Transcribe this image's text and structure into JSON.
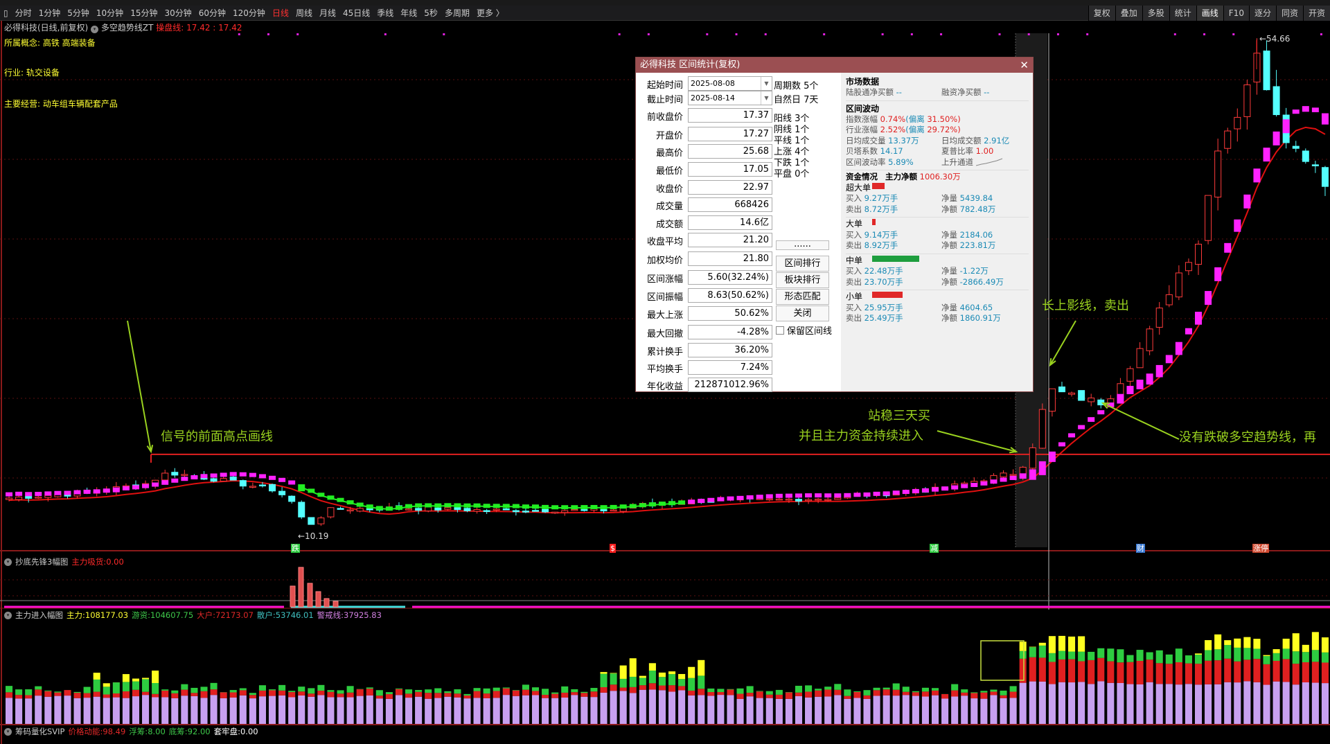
{
  "toolbar": {
    "periods": [
      "分时",
      "1分钟",
      "5分钟",
      "10分钟",
      "15分钟",
      "30分钟",
      "60分钟",
      "120分钟",
      "日线",
      "周线",
      "月线",
      "45日线",
      "季线",
      "年线",
      "5秒",
      "多周期",
      "更多 〉"
    ],
    "active": "日线",
    "right_buttons": [
      "复权",
      "叠加",
      "多股",
      "统计",
      "画线",
      "F10",
      "逐分",
      "同资",
      "开资"
    ],
    "right_active": "画线"
  },
  "info": {
    "stock": "必得科技(日线,前复权)",
    "indicator": "多空趋势线ZT",
    "pan_label": "操盘线:",
    "pan_value": "17.42 : 17.42",
    "concept": "所属概念: 高铁 高端装备",
    "industry": "行业: 轨交设备",
    "business": "主要经营: 动车组车辆配套产品"
  },
  "chart": {
    "high_label": "←54.66",
    "low_label": "←10.19",
    "markers": [
      {
        "t": "跌",
        "c": "#2ecc40"
      },
      {
        "t": "$",
        "c": "#ff2020"
      },
      {
        "t": "减",
        "c": "#2ecc40"
      },
      {
        "t": "财",
        "c": "#3a7bd5"
      },
      {
        "t": "涨停",
        "c": "#d04a30"
      }
    ],
    "price_keypoints": [
      [
        0,
        13.5
      ],
      [
        0.06,
        14
      ],
      [
        0.104,
        14.8
      ],
      [
        0.121,
        15.8
      ],
      [
        0.156,
        15.2
      ],
      [
        0.203,
        14.2
      ],
      [
        0.219,
        12.8
      ],
      [
        0.225,
        10.8
      ],
      [
        0.245,
        12.5
      ],
      [
        0.292,
        12.6
      ],
      [
        0.365,
        12.4
      ],
      [
        0.458,
        12.4
      ],
      [
        0.469,
        12.8
      ],
      [
        0.536,
        13.3
      ],
      [
        0.573,
        13.3
      ],
      [
        0.625,
        13.5
      ],
      [
        0.708,
        14.3
      ],
      [
        0.74,
        15.2
      ],
      [
        0.766,
        15.8
      ],
      [
        0.776,
        17.4
      ],
      [
        0.784,
        21
      ],
      [
        0.792,
        23.2
      ],
      [
        0.813,
        22.5
      ],
      [
        0.833,
        22
      ],
      [
        0.844,
        24
      ],
      [
        0.865,
        28
      ],
      [
        0.885,
        33
      ],
      [
        0.906,
        37
      ],
      [
        0.917,
        45
      ],
      [
        0.938,
        49
      ],
      [
        0.945,
        54
      ],
      [
        0.958,
        50
      ],
      [
        0.974,
        45
      ],
      [
        0.99,
        44
      ],
      [
        1,
        42
      ]
    ],
    "price_range": [
      10.19,
      54.66
    ],
    "resistance": 17.42,
    "colors": {
      "up": "#ff3b3b",
      "down": "#54ffff",
      "trend_up": "#ff22ff",
      "trend_down": "#22ee22",
      "ma": "#e01010"
    }
  },
  "annotations": {
    "a1": "信号的前面高点画线",
    "a2": "站稳三天买",
    "a3": "并且主力资金持续进入",
    "a4": "长上影线，卖出",
    "a5": "没有跌破多空趋势线，再"
  },
  "dialog": {
    "title": "必得科技 区间统计(复权)",
    "close": "✕",
    "fields": [
      {
        "label": "起始时间",
        "value": "2025-08-08"
      },
      {
        "label": "截止时间",
        "value": "2025-08-14"
      },
      {
        "label": "前收盘价",
        "value": "17.37"
      },
      {
        "label": "开盘价",
        "value": "17.27"
      },
      {
        "label": "最高价",
        "value": "25.68"
      },
      {
        "label": "最低价",
        "value": "17.05"
      },
      {
        "label": "收盘价",
        "value": "22.97"
      },
      {
        "label": "成交量",
        "value": "668426"
      },
      {
        "label": "成交额",
        "value": "14.6亿"
      },
      {
        "label": "收盘平均",
        "value": "21.20"
      },
      {
        "label": "加权均价",
        "value": "21.80"
      },
      {
        "label": "区间涨幅",
        "value": "5.60(32.24%)"
      },
      {
        "label": "区间振幅",
        "value": "8.63(50.62%)"
      },
      {
        "label": "最大上涨",
        "value": "50.62%"
      },
      {
        "label": "最大回撤",
        "value": "-4.28%"
      },
      {
        "label": "累计换手",
        "value": "36.20%"
      },
      {
        "label": "平均换手",
        "value": "7.24%"
      },
      {
        "label": "年化收益",
        "value": "212871012.96%"
      }
    ],
    "stats": [
      "周期数 5个",
      "自然日 7天",
      "阳线 3个",
      "阴线 1个",
      "平线 1个",
      "上涨 4个",
      "下跌 1个",
      "平盘 0个"
    ],
    "buttons": [
      "......",
      "区间排行",
      "板块排行",
      "形态匹配",
      "关闭"
    ],
    "keep_line": "保留区间线",
    "keep_checked": false,
    "market": {
      "title": "市场数据",
      "lugu": "陆股通净买额",
      "lugu_v": "--",
      "rongzi": "融资净买额",
      "rongzi_v": "--"
    },
    "vol": {
      "title": "区间波动",
      "idx": "指数涨幅",
      "idx_v": "0.74%",
      "idx_dev": "(偏离",
      "idx_dev_v": "31.50%)",
      "ind": "行业涨幅",
      "ind_v": "2.52%",
      "ind_dev": "(偏离",
      "ind_dev_v": "29.72%)",
      "avgvol": "日均成交量",
      "avgvol_v": "13.37万",
      "avgamt": "日均成交额",
      "avgamt_v": "2.91亿",
      "beta": "贝塔系数",
      "beta_v": "14.17",
      "sharpe": "夏普比率",
      "sharpe_v": "1.00",
      "volat": "区间波动率",
      "volat_v": "5.89%",
      "channel": "上升通道"
    },
    "funds": {
      "title": "资金情况",
      "main": "主力净额",
      "main_v": "1006.30万",
      "groups": [
        {
          "name": "超大单",
          "color": "#e02828",
          "bar": 0.27,
          "buy": "9.27万手",
          "sell": "8.72万手",
          "nq": "5439.84",
          "na": "782.48万"
        },
        {
          "name": "大单",
          "color": "#e02828",
          "bar": 0.07,
          "buy": "9.14万手",
          "sell": "8.92万手",
          "nq": "2184.06",
          "na": "223.81万"
        },
        {
          "name": "中单",
          "color": "#1e9e3e",
          "bar": 1.0,
          "buy": "22.48万手",
          "sell": "23.70万手",
          "nq": "-1.22万",
          "na": "-2866.49万"
        },
        {
          "name": "小单",
          "color": "#e02828",
          "bar": 0.64,
          "buy": "25.95万手",
          "sell": "25.49万手",
          "nq": "4604.65",
          "na": "1860.91万"
        }
      ],
      "buy": "买入",
      "sell": "卖出",
      "nq": "净量",
      "na": "净额"
    }
  },
  "panel1": {
    "name": "抄底先锋3幅图",
    "k": "主力吸货:",
    "v": "0.00"
  },
  "panel2": {
    "name": "主力进入幅图",
    "items": [
      {
        "k": "主力:",
        "v": "108177.03",
        "c": "#ffff33"
      },
      {
        "k": "游资:",
        "v": "104607.75",
        "c": "#3ec84a"
      },
      {
        "k": "大户:",
        "v": "72173.07",
        "c": "#e02828"
      },
      {
        "k": "散户:",
        "v": "53746.01",
        "c": "#40c0c0"
      },
      {
        "k": "警戒线:",
        "v": "37925.83",
        "c": "#d080e0"
      }
    ]
  },
  "panel3": {
    "name": "筹码量化SVIP",
    "items": [
      {
        "k": "价格动能:",
        "v": "98.49",
        "c": "#e02828"
      },
      {
        "k": "浮筹:",
        "v": "8.00",
        "c": "#3ec84a"
      },
      {
        "k": "底筹:",
        "v": "92.00",
        "c": "#3ec84a"
      },
      {
        "k": "套牢盘:",
        "v": "0.00",
        "c": "#ffffff"
      }
    ]
  }
}
